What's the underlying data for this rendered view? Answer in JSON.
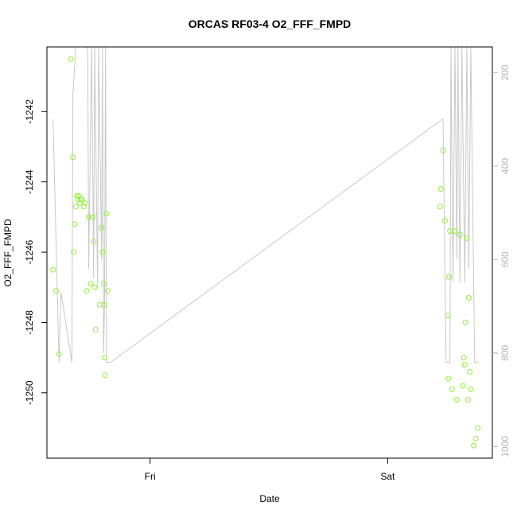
{
  "chart_data": {
    "type": "scatter",
    "title": "ORCAS RF03-4 O2_FFF_FMPD",
    "xlabel": "Date",
    "ylabel": "O2_FFF_FMPD",
    "x_ticks": [
      {
        "label": "Fri",
        "value": 24
      },
      {
        "label": "Sat",
        "value": 48
      }
    ],
    "xlim": [
      13.58,
      58.58
    ],
    "y_ticks": [
      -1250,
      -1248,
      -1246,
      -1244,
      -1242
    ],
    "ylim": [
      -1251.86,
      -1240.16
    ],
    "y2_ticks": [
      200,
      400,
      600,
      800,
      1000
    ],
    "y2lim": [
      145,
      1025
    ],
    "grid": false,
    "colors": {
      "points": "#90ee3a",
      "line": "#c8c8c8",
      "right_axis": "#b3b3b3"
    },
    "points": [
      [
        14.2,
        -1246.5
      ],
      [
        14.5,
        -1247.1
      ],
      [
        14.8,
        -1248.9
      ],
      [
        16.0,
        -1240.5
      ],
      [
        16.2,
        -1243.3
      ],
      [
        16.3,
        -1246.0
      ],
      [
        16.4,
        -1245.2
      ],
      [
        16.5,
        -1244.7
      ],
      [
        16.6,
        -1244.4
      ],
      [
        16.7,
        -1244.5
      ],
      [
        16.8,
        -1244.4
      ],
      [
        16.9,
        -1244.6
      ],
      [
        17.0,
        -1244.5
      ],
      [
        17.1,
        -1244.5
      ],
      [
        17.3,
        -1244.7
      ],
      [
        17.4,
        -1244.6
      ],
      [
        17.6,
        -1247.1
      ],
      [
        17.8,
        -1245.0
      ],
      [
        18.0,
        -1246.9
      ],
      [
        18.2,
        -1245.0
      ],
      [
        18.3,
        -1245.7
      ],
      [
        18.4,
        -1247.0
      ],
      [
        18.5,
        -1248.2
      ],
      [
        18.9,
        -1247.5
      ],
      [
        19.1,
        -1245.3
      ],
      [
        19.2,
        -1246.0
      ],
      [
        19.3,
        -1246.9
      ],
      [
        19.35,
        -1247.5
      ],
      [
        19.4,
        -1249.0
      ],
      [
        19.45,
        -1249.5
      ],
      [
        19.6,
        -1244.9
      ],
      [
        19.7,
        -1247.1
      ],
      [
        53.3,
        -1244.7
      ],
      [
        53.4,
        -1244.2
      ],
      [
        53.6,
        -1243.1
      ],
      [
        53.8,
        -1245.1
      ],
      [
        54.1,
        -1247.8
      ],
      [
        54.15,
        -1249.6
      ],
      [
        54.2,
        -1246.7
      ],
      [
        54.3,
        -1245.4
      ],
      [
        54.5,
        -1249.9
      ],
      [
        54.8,
        -1245.4
      ],
      [
        55.0,
        -1250.2
      ],
      [
        55.3,
        -1245.5
      ],
      [
        55.6,
        -1249.8
      ],
      [
        55.7,
        -1249.0
      ],
      [
        55.8,
        -1249.2
      ],
      [
        55.85,
        -1248.0
      ],
      [
        56.0,
        -1245.6
      ],
      [
        56.1,
        -1250.2
      ],
      [
        56.2,
        -1247.3
      ],
      [
        56.3,
        -1249.4
      ],
      [
        56.4,
        -1249.9
      ],
      [
        56.7,
        -1251.5
      ],
      [
        56.9,
        -1251.3
      ],
      [
        57.1,
        -1251.0
      ]
    ],
    "line_points": [
      [
        14.2,
        300
      ],
      [
        14.8,
        820
      ],
      [
        15.0,
        670
      ],
      [
        16.1,
        820
      ],
      [
        16.2,
        250
      ],
      [
        16.5,
        145
      ],
      [
        16.7,
        145
      ],
      [
        16.8,
        145
      ],
      [
        17.0,
        145
      ],
      [
        17.2,
        145
      ],
      [
        17.3,
        145
      ],
      [
        17.5,
        145
      ],
      [
        17.7,
        150
      ],
      [
        17.8,
        620
      ],
      [
        18.1,
        145
      ],
      [
        18.3,
        640
      ],
      [
        18.4,
        145
      ],
      [
        18.7,
        660
      ],
      [
        18.8,
        145
      ],
      [
        19.1,
        600
      ],
      [
        19.2,
        145
      ],
      [
        19.3,
        800
      ],
      [
        19.4,
        700
      ],
      [
        19.5,
        145
      ],
      [
        19.6,
        820
      ],
      [
        20.0,
        820
      ],
      [
        53.5,
        300
      ],
      [
        53.6,
        300
      ],
      [
        53.9,
        820
      ],
      [
        54.3,
        820
      ],
      [
        54.4,
        145
      ],
      [
        54.6,
        650
      ],
      [
        54.8,
        145
      ],
      [
        55.0,
        600
      ],
      [
        55.1,
        145
      ],
      [
        55.3,
        650
      ],
      [
        55.5,
        145
      ],
      [
        55.8,
        650
      ],
      [
        56.0,
        145
      ],
      [
        56.2,
        620
      ],
      [
        56.4,
        145
      ],
      [
        56.8,
        820
      ],
      [
        57.2,
        820
      ]
    ]
  }
}
